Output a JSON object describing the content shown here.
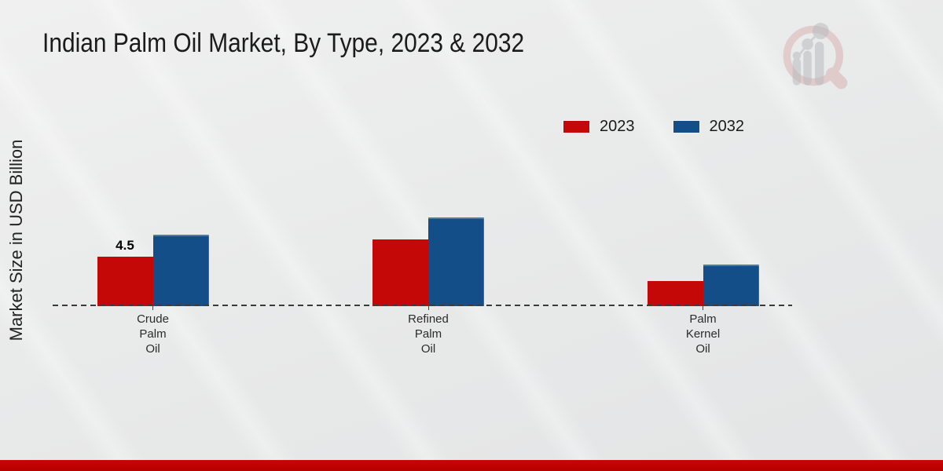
{
  "title": "Indian Palm Oil Market, By Type, 2023 & 2032",
  "y_axis": {
    "label": "Market Size in USD Billion"
  },
  "chart_data": {
    "type": "bar",
    "title": "Indian Palm Oil Market, By Type, 2023 & 2032",
    "ylabel": "Market Size in USD Billion",
    "categories": [
      "Crude Palm Oil",
      "Refined Palm Oil",
      "Palm Kernel Oil"
    ],
    "categories_display": [
      "Crude\nPalm\nOil",
      "Refined\nPalm\nOil",
      "Palm\nKernel\nOil"
    ],
    "series": [
      {
        "name": "2023",
        "color": "#c40707",
        "values": [
          4.5,
          6.1,
          2.3
        ]
      },
      {
        "name": "2032",
        "color": "#134e88",
        "values": [
          6.5,
          8.1,
          3.8
        ]
      }
    ],
    "data_labels": [
      {
        "series_index": 0,
        "category_index": 0,
        "text": "4.5"
      }
    ],
    "ylim": [
      0,
      9
    ],
    "grid": false,
    "legend_position": "top-right",
    "baseline_style": "dashed",
    "y_axis_ticks_visible": false
  },
  "colors": {
    "series_2023": "#c40707",
    "series_2032": "#134e88",
    "bottom_bar": "#be0303",
    "background": "#e9eaea"
  },
  "branding": {
    "watermark": "bar-chart-magnifier-logo"
  }
}
